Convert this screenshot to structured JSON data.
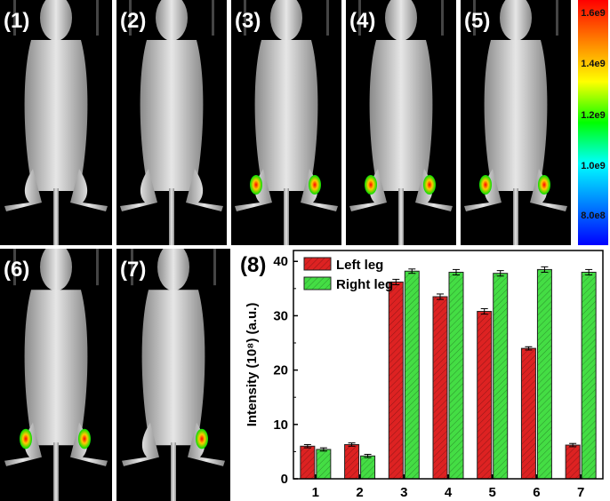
{
  "panels": [
    {
      "label": "(1)",
      "spots": []
    },
    {
      "label": "(2)",
      "spots": []
    },
    {
      "label": "(3)",
      "spots": [
        "left",
        "right"
      ]
    },
    {
      "label": "(4)",
      "spots": [
        "left",
        "right"
      ]
    },
    {
      "label": "(5)",
      "spots": [
        "left",
        "right"
      ]
    },
    {
      "label": "(6)",
      "spots": [
        "left",
        "right"
      ]
    },
    {
      "label": "(7)",
      "spots": [
        "right"
      ]
    }
  ],
  "colorbar": {
    "ticks": [
      "1.6e9",
      "1.4e9",
      "1.2e9",
      "1.0e9",
      "8.0e8"
    ],
    "gradient": [
      "#ff0000",
      "#ff8000",
      "#ffff00",
      "#00ff00",
      "#00ffff",
      "#0080ff",
      "#0000ff"
    ]
  },
  "chart_data": {
    "type": "bar",
    "panel_label": "(8)",
    "categories": [
      "1",
      "2",
      "3",
      "4",
      "5",
      "6",
      "7"
    ],
    "series": [
      {
        "name": "Left leg",
        "color": "#dd2222",
        "values": [
          6.0,
          6.3,
          36.2,
          33.5,
          30.8,
          24.0,
          6.2
        ],
        "errors": [
          0.3,
          0.3,
          0.5,
          0.5,
          0.5,
          0.3,
          0.3
        ]
      },
      {
        "name": "Right leg",
        "color": "#44dd44",
        "values": [
          5.4,
          4.2,
          38.2,
          38.0,
          37.8,
          38.5,
          38.0
        ],
        "errors": [
          0.3,
          0.3,
          0.4,
          0.5,
          0.5,
          0.5,
          0.5
        ]
      }
    ],
    "ylabel": "Intensity (10⁸) (a.u.)",
    "ylim": [
      0,
      42
    ],
    "yticks": [
      0,
      10,
      20,
      30,
      40
    ],
    "legend_position": "top-left"
  }
}
